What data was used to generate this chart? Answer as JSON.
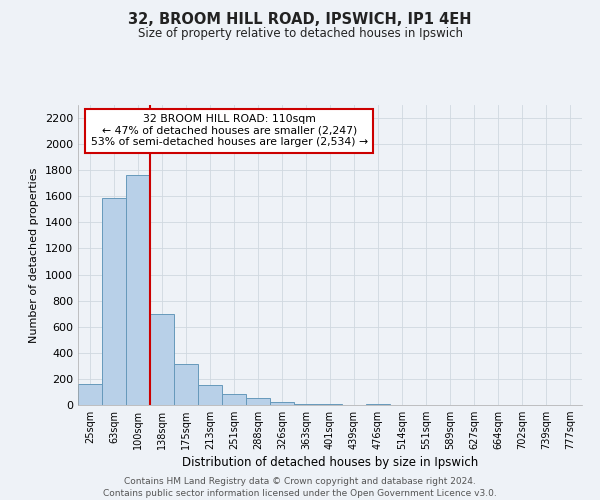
{
  "title": "32, BROOM HILL ROAD, IPSWICH, IP1 4EH",
  "subtitle": "Size of property relative to detached houses in Ipswich",
  "xlabel": "Distribution of detached houses by size in Ipswich",
  "ylabel": "Number of detached properties",
  "bar_labels": [
    "25sqm",
    "63sqm",
    "100sqm",
    "138sqm",
    "175sqm",
    "213sqm",
    "251sqm",
    "288sqm",
    "326sqm",
    "363sqm",
    "401sqm",
    "439sqm",
    "476sqm",
    "514sqm",
    "551sqm",
    "589sqm",
    "627sqm",
    "664sqm",
    "702sqm",
    "739sqm",
    "777sqm"
  ],
  "bar_values": [
    160,
    1590,
    1760,
    700,
    315,
    155,
    85,
    50,
    25,
    10,
    5,
    0,
    5,
    0,
    0,
    0,
    0,
    0,
    0,
    0,
    0
  ],
  "bar_color": "#b8d0e8",
  "bar_edge_color": "#6699bb",
  "property_line_xidx": 2,
  "property_line_color": "#cc0000",
  "annotation_text": "32 BROOM HILL ROAD: 110sqm\n← 47% of detached houses are smaller (2,247)\n53% of semi-detached houses are larger (2,534) →",
  "annotation_box_color": "#ffffff",
  "annotation_box_edge_color": "#cc0000",
  "ylim": [
    0,
    2300
  ],
  "yticks": [
    0,
    200,
    400,
    600,
    800,
    1000,
    1200,
    1400,
    1600,
    1800,
    2000,
    2200
  ],
  "grid_color": "#d0d8e0",
  "background_color": "#eef2f7",
  "footer_line1": "Contains HM Land Registry data © Crown copyright and database right 2024.",
  "footer_line2": "Contains public sector information licensed under the Open Government Licence v3.0."
}
